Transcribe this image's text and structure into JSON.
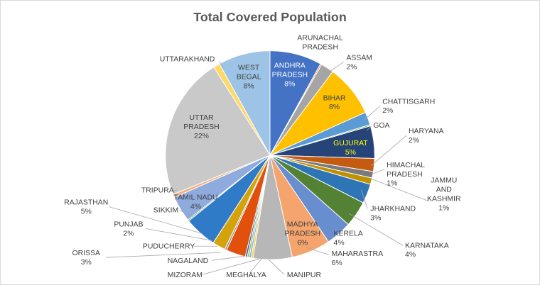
{
  "chart_data": {
    "type": "pie",
    "title": "Total Covered Population",
    "slices": [
      {
        "label": "ANDHRA PRADESH",
        "value": 8,
        "value_label": "8%",
        "color": "#4472c4"
      },
      {
        "label": "ARUNACHAL PRADESH",
        "value": 0.2,
        "value_label": "",
        "color": "#ed7d31"
      },
      {
        "label": "ASSAM",
        "value": 2,
        "value_label": "2%",
        "color": "#a5a5a5"
      },
      {
        "label": "BIHAR",
        "value": 8,
        "value_label": "8%",
        "color": "#ffc000"
      },
      {
        "label": "CHATTISGARH",
        "value": 2,
        "value_label": "2%",
        "color": "#5b9bd5"
      },
      {
        "label": "GOA",
        "value": 0.2,
        "value_label": "",
        "color": "#70ad47"
      },
      {
        "label": "GUJURAT",
        "value": 5,
        "value_label": "5%",
        "color": "#264478"
      },
      {
        "label": "HARYANA",
        "value": 2,
        "value_label": "2%",
        "color": "#c55a11"
      },
      {
        "label": "HIMACHAL PRADESH",
        "value": 1,
        "value_label": "1%",
        "color": "#7b7b7b"
      },
      {
        "label": "JAMMU AND KASHMIR",
        "value": 1,
        "value_label": "1%",
        "color": "#bf9000"
      },
      {
        "label": "JHARKHAND",
        "value": 3,
        "value_label": "3%",
        "color": "#2e75b6"
      },
      {
        "label": "KARNATAKA",
        "value": 4,
        "value_label": "4%",
        "color": "#548235"
      },
      {
        "label": "KERELA",
        "value": 4,
        "value_label": "4%",
        "color": "#698ed0"
      },
      {
        "label": "MADHYA PRADESH",
        "value": 6,
        "value_label": "6%",
        "color": "#f4a46c"
      },
      {
        "label": "MAHARASTRA",
        "value": 6,
        "value_label": "6%",
        "color": "#b7b7b7"
      },
      {
        "label": "MANIPUR",
        "value": 0.3,
        "value_label": "",
        "color": "#ffcd33"
      },
      {
        "label": "MEGHALYA",
        "value": 0.3,
        "value_label": "",
        "color": "#7caddd"
      },
      {
        "label": "MIZORAM",
        "value": 0.3,
        "value_label": "",
        "color": "#8cc168"
      },
      {
        "label": "NAGALAND",
        "value": 0.3,
        "value_label": "",
        "color": "#3a5a98"
      },
      {
        "label": "ORISSA",
        "value": 3,
        "value_label": "3%",
        "color": "#e2500e"
      },
      {
        "label": "PUDUCHERRY",
        "value": 0.3,
        "value_label": "",
        "color": "#909090"
      },
      {
        "label": "PUNJAB",
        "value": 2,
        "value_label": "2%",
        "color": "#d4a20b"
      },
      {
        "label": "RAJASTHAN",
        "value": 5,
        "value_label": "5%",
        "color": "#2f7bc8"
      },
      {
        "label": "SIKKIM",
        "value": 0.2,
        "value_label": "",
        "color": "#4e9a2e"
      },
      {
        "label": "TAMIL NADU",
        "value": 4,
        "value_label": "4%",
        "color": "#8faadc"
      },
      {
        "label": "TRIPURA",
        "value": 0.5,
        "value_label": "",
        "color": "#f4b183"
      },
      {
        "label": "UTTAR PRADESH",
        "value": 22,
        "value_label": "22%",
        "color": "#c9c9c9"
      },
      {
        "label": "UTTARAKHAND",
        "value": 1,
        "value_label": "",
        "color": "#ffd966"
      },
      {
        "label": "WEST BEGAL",
        "value": 8,
        "value_label": "8%",
        "color": "#9dc3e6"
      }
    ]
  }
}
